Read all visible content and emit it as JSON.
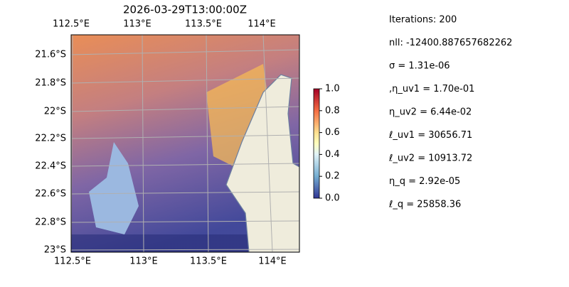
{
  "map": {
    "title": "2026-03-29T13:00:00Z",
    "x_ticks_top": [
      "112.5°E",
      "113°E",
      "113.5°E",
      "114°E"
    ],
    "x_ticks_bottom": [
      "112.5°E",
      "113°E",
      "113.5°E",
      "114°E"
    ],
    "y_ticks": [
      "21.6°S",
      "21.8°S",
      "22°S",
      "22.2°S",
      "22.4°S",
      "22.6°S",
      "22.8°S",
      "23°S"
    ]
  },
  "colorbar": {
    "lim": [
      0,
      1
    ],
    "ticks": [
      {
        "value": 0,
        "label": "0.0"
      },
      0.2,
      0.4,
      0.6,
      0.8,
      {
        "value": 1,
        "label": "1.0"
      }
    ]
  },
  "info": [
    "Iterations: 200",
    "nll: -12400.887657682262",
    "σ = 1.31e-06",
    ",η_uv1 = 1.70e-01",
    "η_uv2 = 6.44e-02",
    "ℓ_uv1 = 30656.71",
    "ℓ_uv2 = 10913.72",
    "η_q = 2.92e-05",
    "ℓ_q = 25858.36"
  ]
}
